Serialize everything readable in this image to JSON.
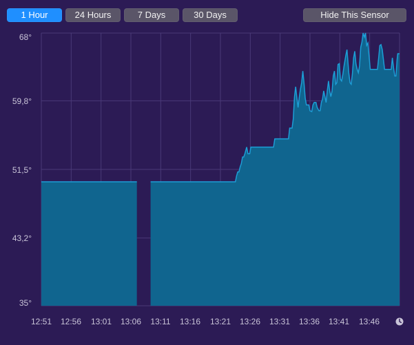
{
  "toolbar": {
    "buttons": [
      {
        "label": "1 Hour",
        "active": true
      },
      {
        "label": "24 Hours",
        "active": false
      },
      {
        "label": "7 Days",
        "active": false
      },
      {
        "label": "30 Days",
        "active": false
      }
    ],
    "hide_label": "Hide This Sensor"
  },
  "colors": {
    "background": "#2c1b55",
    "fill": "#10658f",
    "stroke": "#1d9ed6",
    "grid": "#4a3a78",
    "active_button": "#1f8fff"
  },
  "chart_data": {
    "type": "area",
    "title": "",
    "xlabel": "",
    "ylabel": "",
    "ylim": [
      35,
      68
    ],
    "y_ticks": [
      "68°",
      "59,8°",
      "51,5°",
      "43,2°",
      "35°"
    ],
    "y_tick_values": [
      68,
      59.8,
      51.5,
      43.2,
      35
    ],
    "x_ticks": [
      "12:51",
      "12:56",
      "13:01",
      "13:06",
      "13:11",
      "13:16",
      "13:21",
      "13:26",
      "13:31",
      "13:36",
      "13:41",
      "13:46"
    ],
    "grid": true,
    "series": [
      {
        "segments": [
          [
            [
              0,
              50.0
            ],
            [
              16,
              50.0
            ]
          ],
          [
            [
              18.3,
              50.0
            ],
            [
              32.5,
              50.0
            ],
            [
              32.7,
              50.7
            ],
            [
              32.9,
              51.2
            ],
            [
              33.1,
              51.2
            ],
            [
              33.3,
              51.8
            ],
            [
              33.5,
              52.2
            ],
            [
              33.7,
              53.0
            ],
            [
              33.9,
              53.0
            ],
            [
              34.1,
              53.4
            ],
            [
              34.4,
              54.2
            ],
            [
              34.6,
              53.4
            ],
            [
              34.9,
              53.4
            ],
            [
              35.1,
              54.2
            ],
            [
              35.3,
              54.2
            ],
            [
              38.9,
              54.2
            ],
            [
              39.1,
              55.2
            ],
            [
              41.4,
              55.2
            ],
            [
              41.6,
              56.5
            ],
            [
              42.0,
              56.5
            ],
            [
              42.2,
              57.6
            ],
            [
              42.4,
              60.3
            ],
            [
              42.6,
              61.5
            ],
            [
              42.8,
              60.2
            ],
            [
              43.0,
              59.0
            ],
            [
              43.2,
              60.2
            ],
            [
              43.4,
              61.2
            ],
            [
              43.6,
              62.0
            ],
            [
              43.8,
              63.4
            ],
            [
              44.0,
              62.0
            ],
            [
              44.2,
              60.1
            ],
            [
              44.4,
              59.3
            ],
            [
              44.8,
              59.3
            ],
            [
              45.0,
              58.6
            ],
            [
              45.3,
              58.5
            ],
            [
              45.5,
              59.3
            ],
            [
              45.7,
              59.6
            ],
            [
              46.0,
              59.6
            ],
            [
              46.2,
              59.0
            ],
            [
              46.5,
              58.6
            ],
            [
              46.7,
              58.6
            ],
            [
              46.9,
              59.6
            ],
            [
              47.1,
              60.0
            ],
            [
              47.3,
              61.0
            ],
            [
              47.5,
              60.3
            ],
            [
              47.7,
              59.6
            ],
            [
              47.9,
              61.0
            ],
            [
              48.1,
              62.2
            ],
            [
              48.3,
              61.0
            ],
            [
              48.5,
              60.3
            ],
            [
              48.7,
              61.0
            ],
            [
              48.9,
              62.8
            ],
            [
              49.1,
              63.4
            ],
            [
              49.3,
              61.8
            ],
            [
              49.5,
              62.0
            ],
            [
              49.7,
              64.2
            ],
            [
              49.9,
              64.3
            ],
            [
              50.1,
              62.4
            ],
            [
              50.3,
              62.2
            ],
            [
              50.5,
              63.0
            ],
            [
              50.7,
              64.0
            ],
            [
              51.0,
              65.3
            ],
            [
              51.2,
              66.0
            ],
            [
              51.5,
              63.2
            ],
            [
              51.7,
              62.0
            ],
            [
              51.9,
              61.8
            ],
            [
              52.1,
              63.0
            ],
            [
              52.3,
              65.0
            ],
            [
              52.5,
              65.8
            ],
            [
              52.7,
              64.3
            ],
            [
              52.9,
              63.6
            ],
            [
              53.1,
              63.2
            ],
            [
              53.3,
              64.0
            ],
            [
              53.5,
              66.3
            ],
            [
              53.7,
              66.9
            ],
            [
              53.9,
              68.0
            ],
            [
              54.1,
              67.5
            ],
            [
              54.3,
              68.0
            ],
            [
              54.5,
              66.5
            ],
            [
              54.7,
              66.8
            ],
            [
              54.9,
              65.2
            ],
            [
              55.1,
              63.6
            ],
            [
              55.3,
              63.6
            ],
            [
              56.3,
              63.6
            ],
            [
              56.5,
              65.0
            ],
            [
              56.7,
              66.5
            ],
            [
              56.9,
              66.6
            ],
            [
              57.1,
              66.0
            ],
            [
              57.3,
              64.8
            ],
            [
              57.5,
              63.6
            ],
            [
              58.6,
              63.6
            ],
            [
              58.8,
              65.0
            ],
            [
              59.0,
              63.8
            ],
            [
              59.2,
              62.8
            ],
            [
              59.4,
              62.8
            ],
            [
              59.6,
              64.8
            ],
            [
              59.7,
              65.5
            ],
            [
              60.0,
              65.5
            ]
          ]
        ]
      }
    ]
  }
}
